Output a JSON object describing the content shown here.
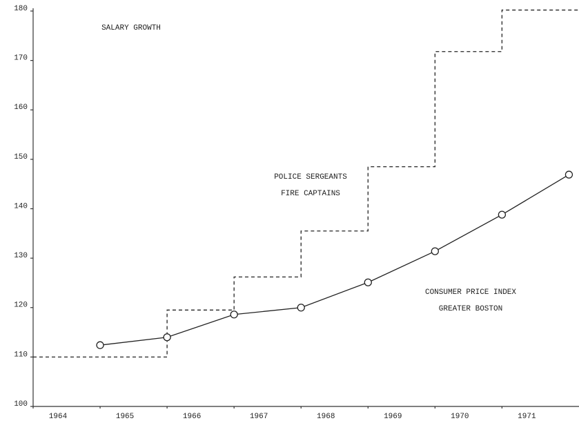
{
  "chart_data": {
    "type": "line",
    "annotations": [
      "SALARY GROWTH",
      "POLICE SERGEANTS",
      "FIRE CAPTAINS",
      "CONSUMER PRICE INDEX",
      "GREATER BOSTON"
    ],
    "xlim": [
      1964,
      1972.15
    ],
    "xticks": [
      1964,
      1965,
      1966,
      1967,
      1968,
      1969,
      1970,
      1971
    ],
    "ylim": [
      100,
      180
    ],
    "yticks": [
      100,
      110,
      120,
      130,
      140,
      150,
      160,
      170,
      180
    ],
    "series": [
      {
        "style": "step",
        "color": "#222",
        "x": [
          1964,
          1966,
          1967,
          1968,
          1969,
          1970,
          1971
        ],
        "values": [
          110,
          119.5,
          126.2,
          135.5,
          148.5,
          171.8,
          180.2
        ]
      },
      {
        "style": "line",
        "color": "#222",
        "x": [
          1965,
          1966,
          1967,
          1968,
          1969,
          1970,
          1971,
          1972
        ],
        "values": [
          112.4,
          114.0,
          118.6,
          120.0,
          125.1,
          131.4,
          138.8,
          146.9
        ]
      }
    ]
  }
}
